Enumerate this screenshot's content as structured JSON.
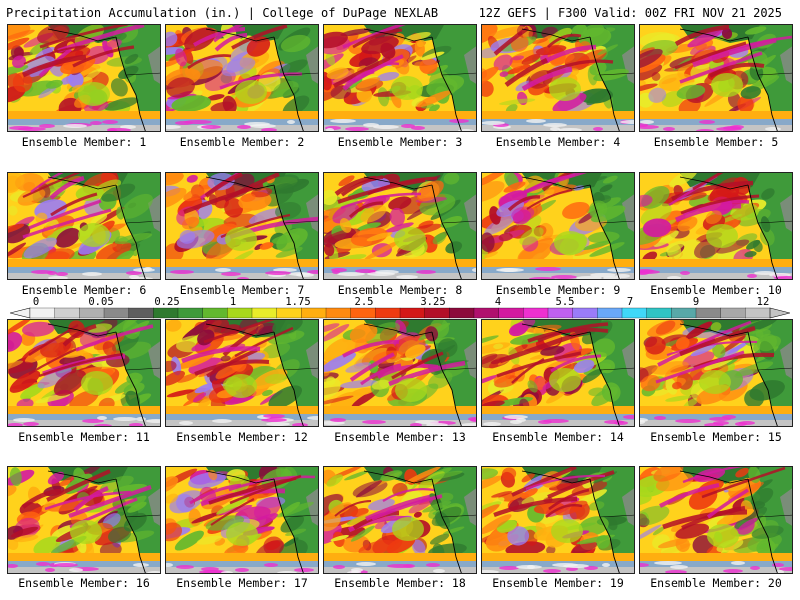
{
  "header": {
    "title_left": "Precipitation Accumulation (in.) | College of DuPage NEXLAB",
    "title_right": "12Z GEFS | F300 Valid: 00Z FRI NOV 21 2025"
  },
  "members": [
    {
      "label": "Ensemble Member: 1"
    },
    {
      "label": "Ensemble Member: 2"
    },
    {
      "label": "Ensemble Member: 3"
    },
    {
      "label": "Ensemble Member: 4"
    },
    {
      "label": "Ensemble Member: 5"
    },
    {
      "label": "Ensemble Member: 6"
    },
    {
      "label": "Ensemble Member: 7"
    },
    {
      "label": "Ensemble Member: 8"
    },
    {
      "label": "Ensemble Member: 9"
    },
    {
      "label": "Ensemble Member: 10"
    },
    {
      "label": "Ensemble Member: 11"
    },
    {
      "label": "Ensemble Member: 12"
    },
    {
      "label": "Ensemble Member: 13"
    },
    {
      "label": "Ensemble Member: 14"
    },
    {
      "label": "Ensemble Member: 15"
    },
    {
      "label": "Ensemble Member: 16"
    },
    {
      "label": "Ensemble Member: 17"
    },
    {
      "label": "Ensemble Member: 18"
    },
    {
      "label": "Ensemble Member: 19"
    },
    {
      "label": "Ensemble Member: 20"
    }
  ],
  "colorbar": {
    "labels": [
      "0",
      "0.05",
      "0.25",
      "1",
      "1.75",
      "2.5",
      "3.25",
      "4",
      "5.5",
      "7",
      "9",
      "12"
    ],
    "colors": [
      "#f2f2f2",
      "#d0d0d0",
      "#b0b0b0",
      "#8a8a8a",
      "#5e5e5e",
      "#2f7a2f",
      "#3f9a3a",
      "#62b82e",
      "#a8d81c",
      "#e8ec2a",
      "#ffd21c",
      "#ffae10",
      "#ff8a10",
      "#ff6410",
      "#ee3a10",
      "#d41818",
      "#b30f28",
      "#8c0a3c",
      "#b0106e",
      "#d41aa0",
      "#ee30d0",
      "#c060f0",
      "#9a7cf8",
      "#6aa8f8",
      "#40d8f8",
      "#30c4c4",
      "#58a8a8",
      "#8a8a8a",
      "#a8a8a8",
      "#c4c4c4"
    ]
  }
}
